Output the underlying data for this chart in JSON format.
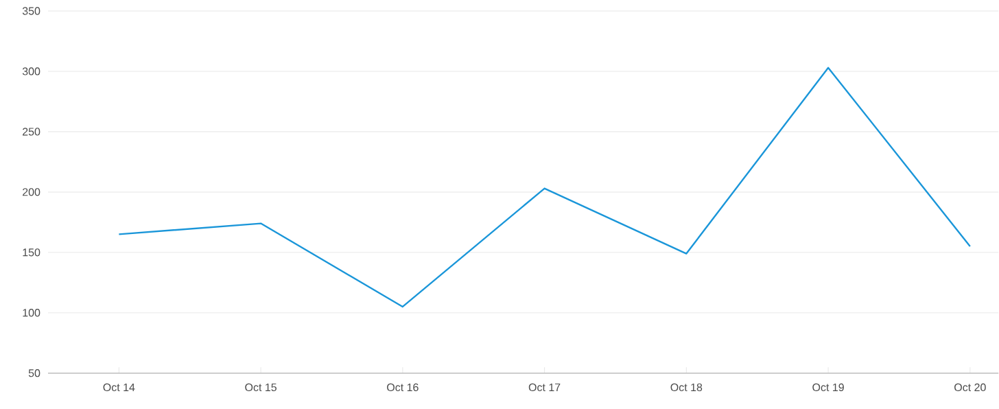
{
  "chart_data": {
    "type": "line",
    "categories": [
      "Oct 14",
      "Oct 15",
      "Oct 16",
      "Oct 17",
      "Oct 18",
      "Oct 19",
      "Oct 20"
    ],
    "series": [
      {
        "color": "#1a96d9",
        "values": [
          165,
          174,
          105,
          203,
          149,
          303,
          155
        ]
      }
    ],
    "ylim": [
      50,
      350
    ],
    "yticks": [
      50,
      100,
      150,
      200,
      250,
      300,
      350
    ],
    "grid": "y",
    "marker": "none",
    "line_style": "solid"
  }
}
